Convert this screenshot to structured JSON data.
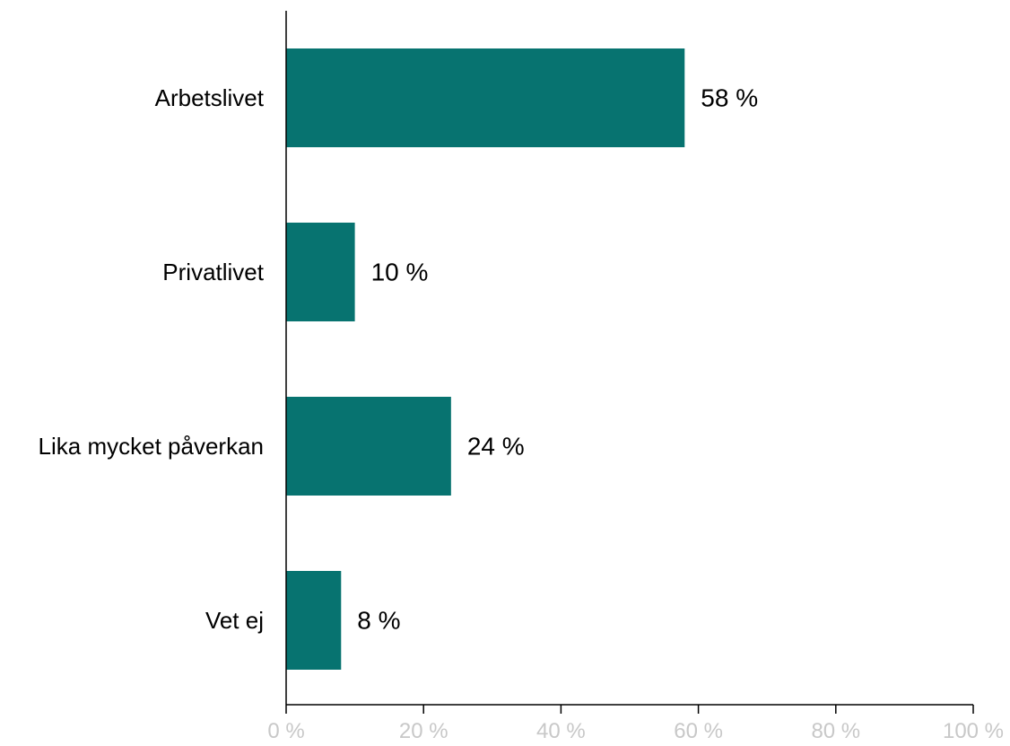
{
  "chart_data": {
    "type": "bar",
    "orientation": "horizontal",
    "categories": [
      "Arbetslivet",
      "Privatlivet",
      "Lika mycket påverkan",
      "Vet ej"
    ],
    "values": [
      58,
      10,
      24,
      8
    ],
    "value_labels": [
      "58 %",
      "10 %",
      "24 %",
      "8 %"
    ],
    "xlim": [
      0,
      100
    ],
    "xticks": [
      0,
      20,
      40,
      60,
      80,
      100
    ],
    "xtick_labels": [
      "0 %",
      "20 %",
      "40 %",
      "60 %",
      "80 %",
      "100 %"
    ],
    "grid": false,
    "bar_color": "#077370",
    "tick_label_color": "#c8c8c8",
    "axis_color": "#000000"
  }
}
